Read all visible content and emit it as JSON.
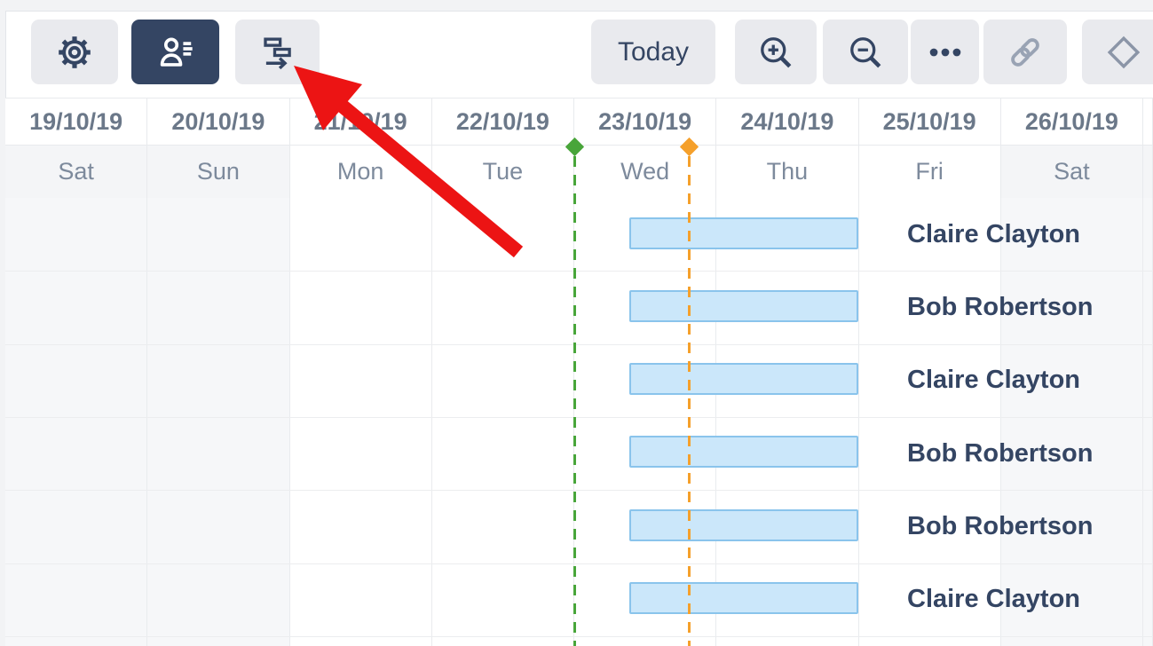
{
  "toolbar": {
    "settings": {
      "icon": "gear-icon",
      "active": false
    },
    "resources": {
      "icon": "person-list-icon",
      "active": true
    },
    "dependencies": {
      "icon": "gantt-dependency-icon",
      "active": false
    },
    "today_label": "Today",
    "zoom_in": {
      "icon": "zoom-in-icon"
    },
    "zoom_out": {
      "icon": "zoom-out-icon"
    },
    "more": {
      "icon": "ellipsis-icon"
    },
    "link": {
      "icon": "link-icon",
      "disabled": true
    },
    "milestone": {
      "icon": "diamond-icon",
      "disabled": true
    }
  },
  "timeline": {
    "dates": [
      "19/10/19",
      "20/10/19",
      "21/10/19",
      "22/10/19",
      "23/10/19",
      "24/10/19",
      "25/10/19",
      "26/10/19"
    ],
    "days": [
      "Sat",
      "Sun",
      "Mon",
      "Tue",
      "Wed",
      "Thu",
      "Fri",
      "Sat"
    ],
    "weekend": [
      true,
      true,
      false,
      false,
      false,
      false,
      false,
      true
    ],
    "markers": [
      {
        "name": "start-marker",
        "color": "#48A53A",
        "at_col": 4.0
      },
      {
        "name": "today-marker",
        "color": "#F5A02B",
        "at_col": 4.811
      }
    ]
  },
  "rows": [
    {
      "assignee": "Claire Clayton",
      "bar": {
        "start_col": 4.39,
        "end_col": 6.0
      }
    },
    {
      "assignee": "Bob Robertson",
      "bar": {
        "start_col": 4.39,
        "end_col": 6.0
      }
    },
    {
      "assignee": "Claire Clayton",
      "bar": {
        "start_col": 4.39,
        "end_col": 6.0
      }
    },
    {
      "assignee": "Bob Robertson",
      "bar": {
        "start_col": 4.39,
        "end_col": 6.0
      }
    },
    {
      "assignee": "Bob Robertson",
      "bar": {
        "start_col": 4.39,
        "end_col": 6.0
      }
    },
    {
      "assignee": "Claire Clayton",
      "bar": {
        "start_col": 4.39,
        "end_col": 6.0
      }
    }
  ],
  "colors": {
    "accent_navy": "#344563",
    "bar_fill": "#CBE7FA",
    "bar_border": "#8AC4EC",
    "weekend_bg": "#F6F7F9",
    "disabled_icon": "#99A3B4",
    "annotation_arrow": "#EC1414"
  }
}
